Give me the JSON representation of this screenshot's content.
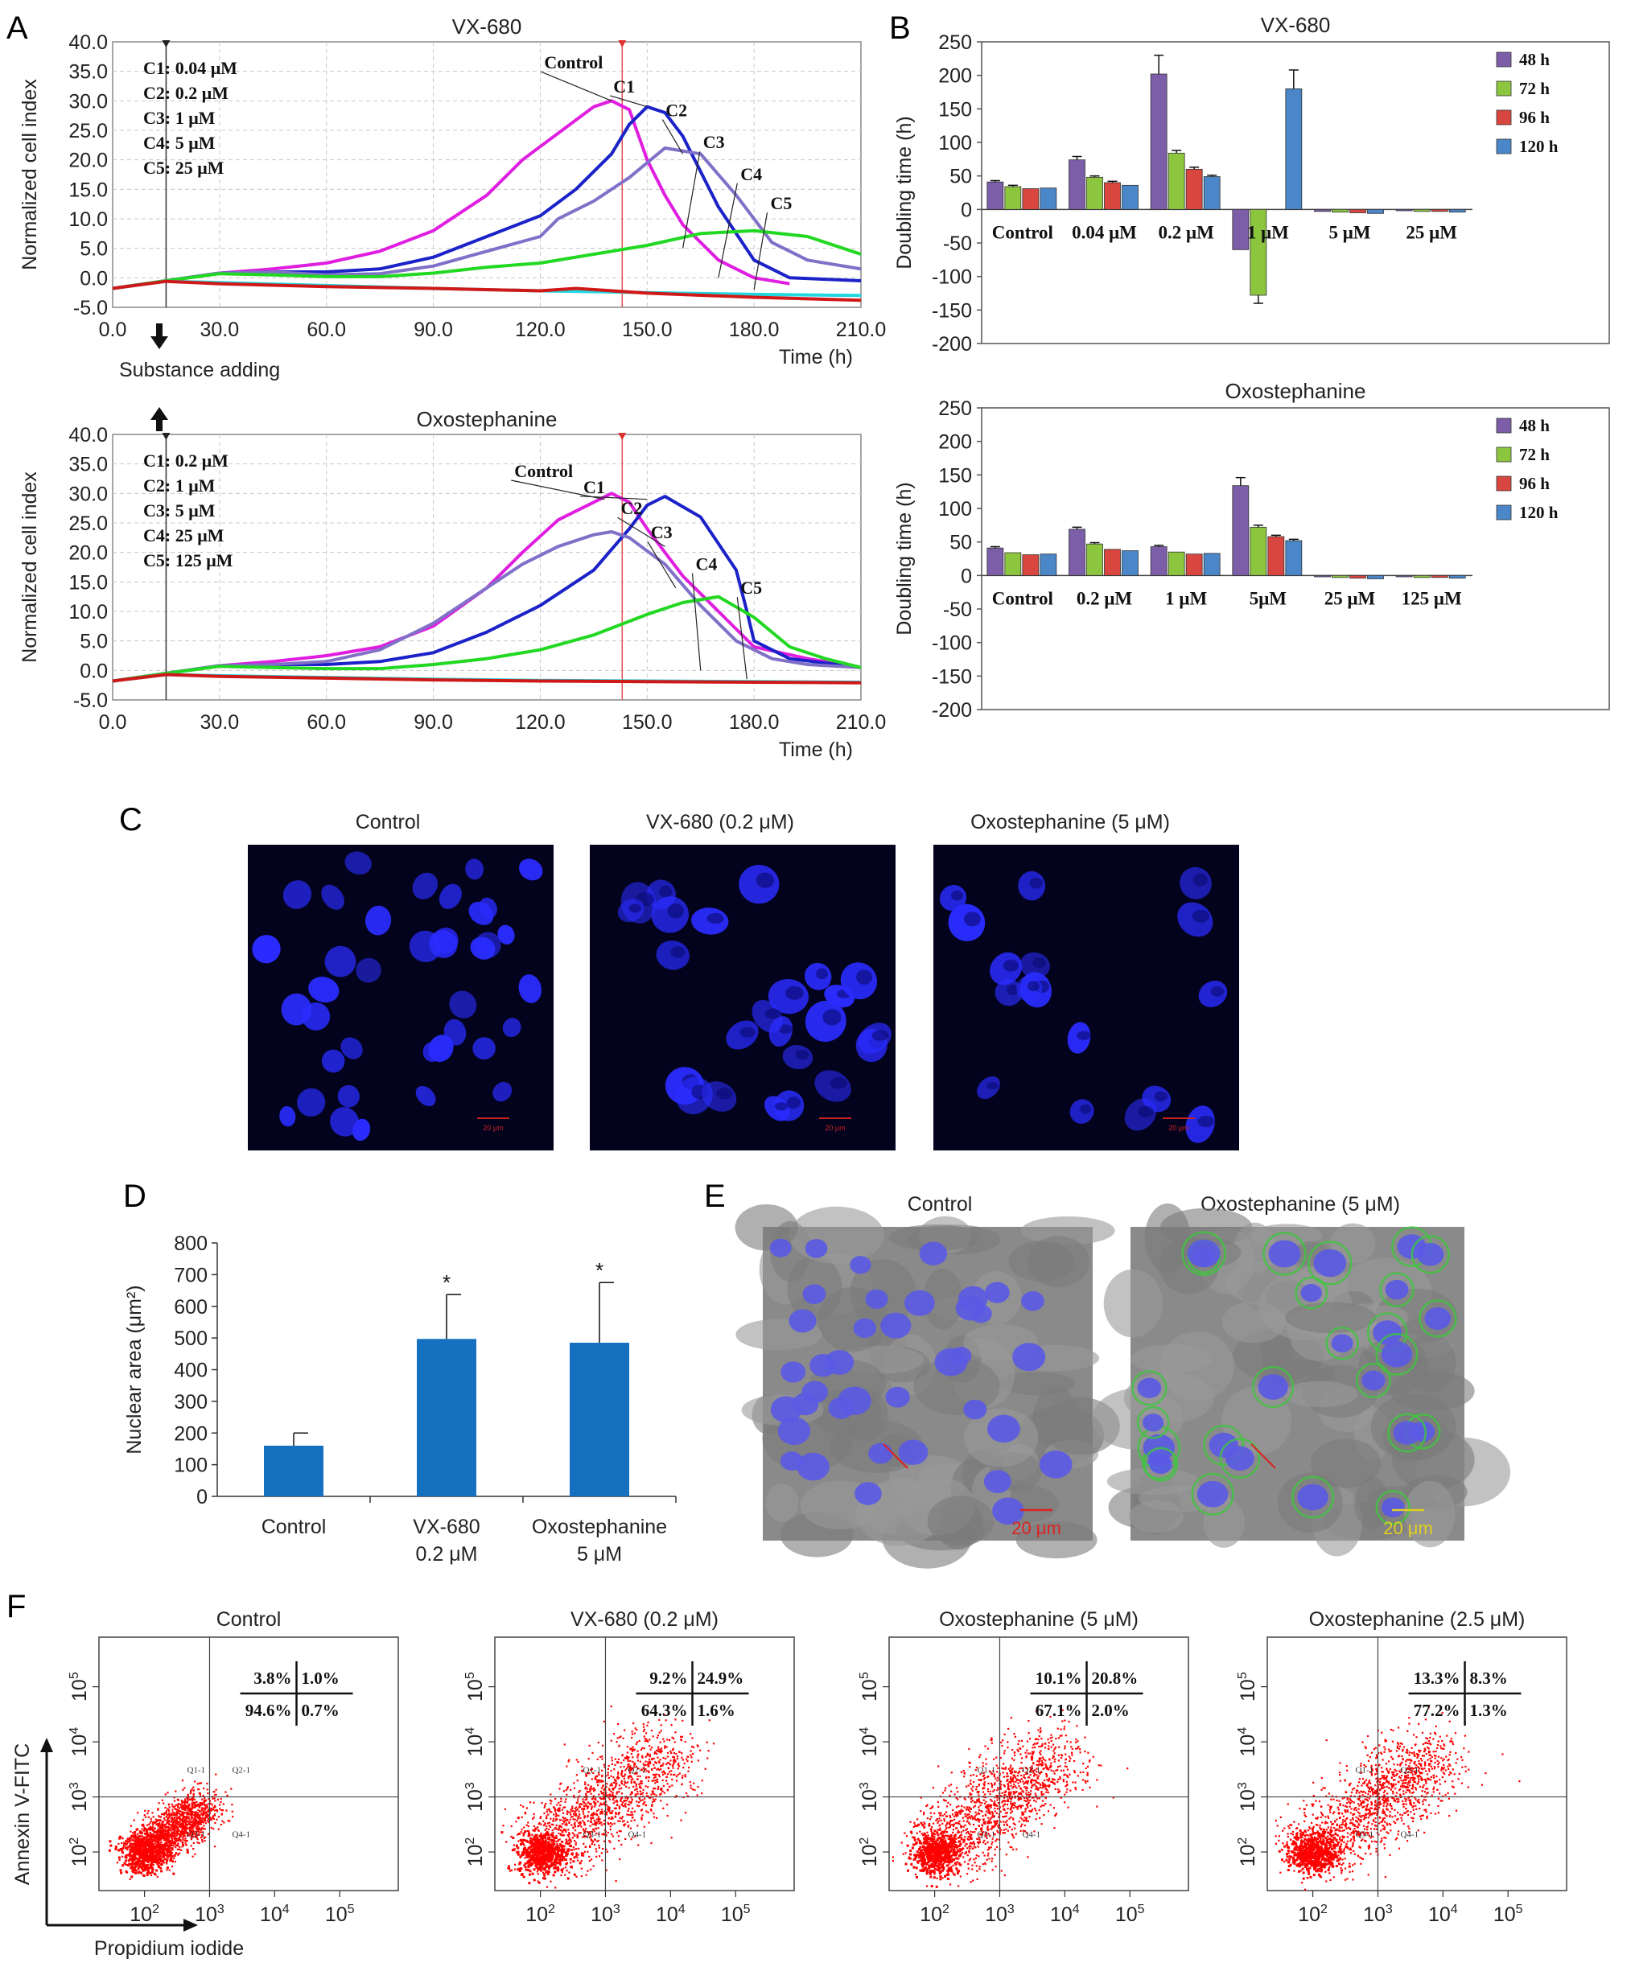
{
  "panel_letters": {
    "A": "A",
    "B": "B",
    "C": "C",
    "D": "D",
    "E": "E",
    "F": "F"
  },
  "colors": {
    "control": "#e01ee0",
    "c1": "#1a22c8",
    "c2": "#8070c8",
    "c3": "#22d822",
    "c4": "#22d8e0",
    "c5": "#d01818",
    "bar48": "#7b5ea7",
    "bar72": "#8cc63f",
    "bar96": "#d9463f",
    "bar120": "#4a86c8",
    "nuclear_bar": "#1670c0",
    "dapi_blue": "#2a2cff",
    "flow_dot": "#ff0000"
  },
  "panelA": {
    "xlabel": "Time (h)",
    "ylabel": "Normalized cell index",
    "substance_adding": "Substance adding",
    "charts": [
      {
        "title": "VX-680",
        "conc_labels": [
          "C1: 0.04 μM",
          "C2: 0.2 μM",
          "C3: 1 μM",
          "C4: 5 μM",
          "C5: 25 μM"
        ],
        "curve_labels": [
          "Control",
          "C1",
          "C2",
          "C3",
          "C4",
          "C5"
        ]
      },
      {
        "title": "Oxostephanine",
        "conc_labels": [
          "C1: 0.2 μM",
          "C2: 1 μM",
          "C3: 5 μM",
          "C4: 25 μM",
          "C5: 125 μM"
        ],
        "curve_labels": [
          "Control",
          "C1",
          "C2",
          "C3",
          "C4",
          "C5"
        ]
      }
    ]
  },
  "panelB": {
    "ylabel": "Doubling time (h)",
    "legend": [
      "48 h",
      "72 h",
      "96 h",
      "120 h"
    ],
    "charts": [
      {
        "title": "VX-680",
        "categories": [
          "Control",
          "0.04 μM",
          "0.2 μM",
          "1 μM",
          "5 μM",
          "25 μM"
        ]
      },
      {
        "title": "Oxostephanine",
        "categories": [
          "Control",
          "0.2 μM",
          "1 μM",
          "5μM",
          "25 μM",
          "125 μM"
        ]
      }
    ]
  },
  "panelC": {
    "labels": [
      "Control",
      "VX-680 (0.2 μM)",
      "Oxostephanine (5 μM)"
    ],
    "scale_text": "20 μm"
  },
  "panelD": {
    "ylabel": "Nuclear area (μm²)",
    "categories": [
      [
        "Control"
      ],
      [
        "VX-680",
        "0.2 μM"
      ],
      [
        "Oxostephanine",
        "5 μM"
      ]
    ],
    "significance": "*"
  },
  "panelE": {
    "labels": [
      "Control",
      "Oxostephanine (5 μM)"
    ],
    "scale_text": "20 μm"
  },
  "panelF": {
    "xlabel": "Propidium iodide",
    "ylabel": "Annexin V-FITC",
    "gate_labels": [
      "Q1-1",
      "Q2-1",
      "Q3-1",
      "Q4-1"
    ],
    "plots": [
      {
        "title": "Control",
        "quadrants": [
          "3.8%",
          "1.0%",
          "94.6%",
          "0.7%"
        ]
      },
      {
        "title": "VX-680 (0.2 μM)",
        "quadrants": [
          "9.2%",
          "24.9%",
          "64.3%",
          "1.6%"
        ]
      },
      {
        "title": "Oxostephanine (5 μM)",
        "quadrants": [
          "10.1%",
          "20.8%",
          "67.1%",
          "2.0%"
        ]
      },
      {
        "title": "Oxostephanine (2.5 μM)",
        "quadrants": [
          "13.3%",
          "8.3%",
          "77.2%",
          "1.3%"
        ]
      }
    ]
  },
  "chart_data": [
    {
      "type": "line",
      "title": "VX-680",
      "xlabel": "Time (h)",
      "ylabel": "Normalized cell index",
      "xlim": [
        0,
        210
      ],
      "ylim": [
        -5,
        40
      ],
      "x_ticks": [
        "0.0",
        "30.0",
        "60.0",
        "90.0",
        "120.0",
        "150.0",
        "180.0",
        "210.0"
      ],
      "y_ticks": [
        "-5.0",
        "0.0",
        "5.0",
        "10.0",
        "15.0",
        "20.0",
        "25.0",
        "30.0",
        "35.0",
        "40.0"
      ],
      "grid": true,
      "series": [
        {
          "name": "Control",
          "x": [
            0,
            15,
            30,
            45,
            60,
            75,
            90,
            105,
            115,
            125,
            135,
            140,
            145,
            150,
            155,
            160,
            170,
            180,
            190
          ],
          "y": [
            -1.8,
            -0.5,
            0.8,
            1.5,
            2.5,
            4.5,
            8,
            14,
            20,
            24.5,
            29,
            30,
            28.5,
            20,
            14,
            9,
            3,
            0,
            -1
          ]
        },
        {
          "name": "C1",
          "x": [
            0,
            15,
            30,
            45,
            60,
            75,
            90,
            105,
            120,
            130,
            140,
            145,
            150,
            155,
            160,
            170,
            180,
            190,
            210
          ],
          "y": [
            -1.8,
            -0.5,
            0.8,
            1,
            1,
            1.5,
            3.5,
            7,
            10.5,
            15,
            21,
            26,
            29,
            28,
            24,
            12,
            3,
            0,
            -0.5
          ]
        },
        {
          "name": "C2",
          "x": [
            0,
            15,
            30,
            45,
            60,
            75,
            90,
            105,
            120,
            125,
            135,
            145,
            155,
            165,
            175,
            185,
            195,
            210
          ],
          "y": [
            -1.8,
            -0.5,
            0.8,
            1,
            0.5,
            0.7,
            2,
            4.5,
            7,
            10,
            13,
            17,
            22,
            21,
            14,
            6,
            3,
            1.5
          ]
        },
        {
          "name": "C3",
          "x": [
            0,
            15,
            30,
            45,
            60,
            75,
            90,
            105,
            120,
            135,
            150,
            165,
            180,
            195,
            210
          ],
          "y": [
            -1.8,
            -0.5,
            0.7,
            0.5,
            0.2,
            0.2,
            0.8,
            1.8,
            2.5,
            4,
            5.5,
            7.5,
            8,
            7,
            4
          ]
        },
        {
          "name": "C4",
          "x": [
            0,
            15,
            30,
            60,
            90,
            120,
            150,
            180,
            210
          ],
          "y": [
            -1.8,
            -0.6,
            -0.8,
            -1.3,
            -1.8,
            -2.2,
            -2.5,
            -2.8,
            -3
          ]
        },
        {
          "name": "C5",
          "x": [
            0,
            15,
            30,
            60,
            90,
            120,
            130,
            150,
            180,
            210
          ],
          "y": [
            -1.8,
            -0.6,
            -1,
            -1.5,
            -1.8,
            -2.2,
            -1.8,
            -2.6,
            -3.3,
            -3.8
          ]
        }
      ]
    },
    {
      "type": "line",
      "title": "Oxostephanine",
      "xlabel": "Time (h)",
      "ylabel": "Normalized cell index",
      "xlim": [
        0,
        210
      ],
      "ylim": [
        -5,
        40
      ],
      "x_ticks": [
        "0.0",
        "30.0",
        "60.0",
        "90.0",
        "120.0",
        "150.0",
        "180.0",
        "210.0"
      ],
      "y_ticks": [
        "-5.0",
        "0.0",
        "5.0",
        "10.0",
        "15.0",
        "20.0",
        "25.0",
        "30.0",
        "35.0",
        "40.0"
      ],
      "grid": true,
      "series": [
        {
          "name": "Control",
          "x": [
            0,
            15,
            30,
            45,
            60,
            75,
            90,
            105,
            115,
            125,
            135,
            140,
            145,
            150,
            155,
            160,
            170,
            180,
            195,
            210
          ],
          "y": [
            -1.8,
            -0.5,
            0.8,
            1.5,
            2.5,
            4,
            7.5,
            14,
            20,
            25.5,
            28.5,
            30,
            28.5,
            24,
            20,
            16,
            10,
            4,
            2,
            0.5
          ]
        },
        {
          "name": "C1",
          "x": [
            0,
            15,
            30,
            45,
            60,
            75,
            90,
            105,
            120,
            135,
            145,
            150,
            155,
            165,
            175,
            178,
            180,
            190,
            210
          ],
          "y": [
            -1.8,
            -0.5,
            0.8,
            1,
            1,
            1.5,
            3,
            6.5,
            11,
            17,
            24,
            28,
            29.5,
            26,
            17,
            10,
            5,
            2,
            0.5
          ]
        },
        {
          "name": "C2",
          "x": [
            0,
            15,
            30,
            45,
            60,
            75,
            90,
            105,
            115,
            125,
            135,
            140,
            145,
            155,
            165,
            175,
            185,
            195,
            210
          ],
          "y": [
            -1.8,
            -0.5,
            0.8,
            1,
            1.5,
            3.5,
            8,
            14,
            18,
            21,
            23,
            23.5,
            22.5,
            18,
            11,
            5,
            2,
            1,
            0.5
          ]
        },
        {
          "name": "C3",
          "x": [
            0,
            15,
            30,
            45,
            60,
            75,
            90,
            105,
            120,
            135,
            150,
            160,
            170,
            180,
            190,
            200,
            210
          ],
          "y": [
            -1.8,
            -0.5,
            0.7,
            0.5,
            0.3,
            0.3,
            1,
            2,
            3.5,
            6,
            9.5,
            11.5,
            12.5,
            9,
            4,
            2,
            0.5
          ]
        },
        {
          "name": "C4",
          "x": [
            0,
            15,
            30,
            60,
            90,
            120,
            150,
            180,
            210
          ],
          "y": [
            -1.8,
            -0.7,
            -0.9,
            -1.2,
            -1.5,
            -1.7,
            -1.8,
            -1.9,
            -2
          ]
        },
        {
          "name": "C5",
          "x": [
            0,
            15,
            30,
            60,
            90,
            120,
            150,
            180,
            210
          ],
          "y": [
            -1.8,
            -0.7,
            -1,
            -1.3,
            -1.6,
            -1.8,
            -1.9,
            -2,
            -2.1
          ]
        }
      ]
    },
    {
      "type": "bar",
      "title": "VX-680",
      "ylabel": "Doubling time (h)",
      "ylim": [
        -200,
        250
      ],
      "y_ticks": [
        "-200",
        "-150",
        "-100",
        "-50",
        "0",
        "50",
        "100",
        "150",
        "200",
        "250"
      ],
      "categories": [
        "Control",
        "0.04 μM",
        "0.2 μM",
        "1 μM",
        "5 μM",
        "25 μM"
      ],
      "series": [
        {
          "name": "48 h",
          "values": [
            41,
            74,
            202,
            -60,
            -3,
            -2
          ],
          "errors": [
            2,
            5,
            28,
            0,
            1,
            1
          ]
        },
        {
          "name": "72 h",
          "values": [
            34,
            48,
            84,
            -128,
            -4,
            -3
          ],
          "errors": [
            2,
            2,
            4,
            12,
            1,
            1
          ]
        },
        {
          "name": "96 h",
          "values": [
            31,
            40,
            60,
            0,
            -5,
            -3
          ],
          "errors": [
            1,
            2,
            3,
            0,
            1,
            1
          ]
        },
        {
          "name": "120 h",
          "values": [
            32,
            36,
            49,
            180,
            -6,
            -4
          ],
          "errors": [
            1,
            1,
            2,
            28,
            1,
            1
          ]
        }
      ]
    },
    {
      "type": "bar",
      "title": "Oxostephanine",
      "ylabel": "Doubling time (h)",
      "ylim": [
        -200,
        250
      ],
      "y_ticks": [
        "-200",
        "-150",
        "-100",
        "-50",
        "0",
        "50",
        "100",
        "150",
        "200",
        "250"
      ],
      "categories": [
        "Control",
        "0.2 μM",
        "1 μM",
        "5μM",
        "25 μM",
        "125 μM"
      ],
      "series": [
        {
          "name": "48 h",
          "values": [
            41,
            69,
            43,
            134,
            -2,
            -2
          ],
          "errors": [
            2,
            3,
            2,
            12,
            1,
            1
          ]
        },
        {
          "name": "72 h",
          "values": [
            34,
            47,
            35,
            72,
            -3,
            -3
          ],
          "errors": [
            1,
            2,
            1,
            3,
            1,
            1
          ]
        },
        {
          "name": "96 h",
          "values": [
            31,
            39,
            32,
            58,
            -4,
            -3
          ],
          "errors": [
            1,
            1,
            1,
            2,
            1,
            1
          ]
        },
        {
          "name": "120 h",
          "values": [
            32,
            37,
            33,
            52,
            -5,
            -4
          ],
          "errors": [
            1,
            1,
            1,
            2,
            1,
            1
          ]
        }
      ]
    },
    {
      "type": "bar",
      "ylabel": "Nuclear area (μm²)",
      "ylim": [
        0,
        800
      ],
      "y_ticks": [
        "0",
        "100",
        "200",
        "300",
        "400",
        "500",
        "600",
        "700",
        "800"
      ],
      "categories": [
        "Control",
        "VX-680 0.2 μM",
        "Oxostephanine 5 μM"
      ],
      "values": [
        160,
        497,
        485
      ],
      "errors": [
        40,
        140,
        190
      ],
      "annotations": [
        "",
        "*",
        "*"
      ]
    }
  ]
}
